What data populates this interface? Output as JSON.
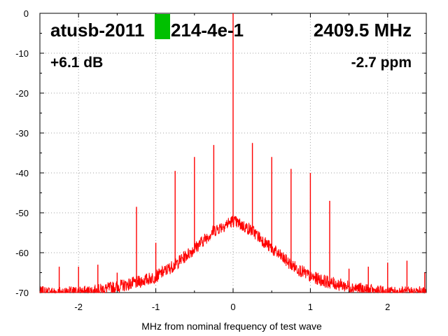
{
  "chart_data": {
    "type": "line",
    "xlabel": "MHz from nominal frequency of test wave",
    "ylabel": "",
    "xlim": [
      -2.5,
      2.5
    ],
    "ylim": [
      -70,
      0
    ],
    "x_ticks": [
      -2,
      -1,
      0,
      1,
      2
    ],
    "y_ticks": [
      0,
      -10,
      -20,
      -30,
      -40,
      -50,
      -60,
      -70
    ],
    "x_tick_labels": [
      "-2",
      "-1",
      "0",
      "1",
      "2"
    ],
    "y_tick_labels": [
      "0",
      "-10",
      "-20",
      "-30",
      "-40",
      "-50",
      "-60",
      "-70"
    ],
    "grid": true,
    "series_color": "#ff0000",
    "marker_color": "#00c000",
    "annotations": {
      "device": "atusb-2011",
      "device_suffix": "214-4e-1",
      "frequency": "2409.5 MHz",
      "gain": "+6.1 dB",
      "offset": "-2.7 ppm"
    },
    "noise_envelope": {
      "x": [
        -2.5,
        -2.25,
        -2.0,
        -1.75,
        -1.5,
        -1.25,
        -1.0,
        -0.75,
        -0.5,
        -0.25,
        0.0,
        0.25,
        0.5,
        0.75,
        1.0,
        1.25,
        1.5,
        1.75,
        2.0,
        2.25,
        2.5
      ],
      "y": [
        -70,
        -70,
        -70,
        -69.5,
        -68.5,
        -67.5,
        -66,
        -63,
        -59,
        -54.5,
        -52,
        -54.5,
        -59,
        -63,
        -66,
        -67.5,
        -68.5,
        -69.5,
        -70,
        -70,
        -70
      ]
    },
    "spurs": {
      "x": [
        -2.48,
        -2.25,
        -2.0,
        -1.75,
        -1.5,
        -1.25,
        -1.0,
        -0.75,
        -0.5,
        -0.25,
        0.0,
        0.25,
        0.5,
        0.75,
        1.0,
        1.25,
        1.5,
        1.75,
        2.0,
        2.25,
        2.48
      ],
      "y": [
        -69,
        -63.5,
        -63.5,
        -63,
        -65,
        -48.5,
        -57.5,
        -39.5,
        -36,
        -33,
        0,
        -32.5,
        -36,
        -39,
        -40,
        -47,
        -64,
        -63.5,
        -62.5,
        -62,
        -65
      ]
    }
  }
}
